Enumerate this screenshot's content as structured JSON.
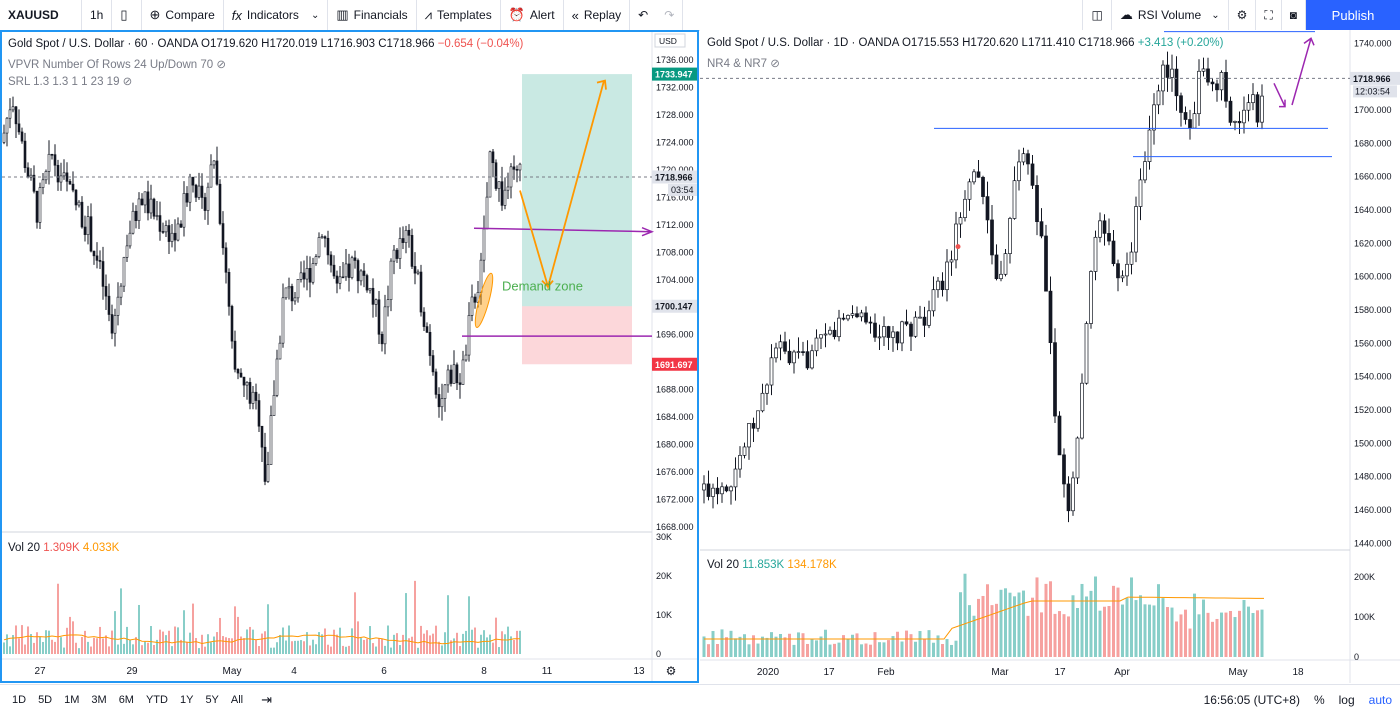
{
  "toolbar": {
    "symbol": "XAUUSD",
    "interval": "1h",
    "compare": "Compare",
    "indicators": "Indicators",
    "financials": "Financials",
    "templates": "Templates",
    "alert": "Alert",
    "replay": "Replay",
    "rsi": "RSI Volume",
    "publish": "Publish"
  },
  "left": {
    "title": "Gold Spot / U.S. Dollar · 60 · OANDA",
    "o": "O1719.620",
    "h": "H1720.019",
    "l": "L1716.903",
    "c": "C1718.966",
    "chg": "−0.654 (−0.04%)",
    "ind1": "VPVR Number Of Rows 24 Up/Down 70",
    "ind2": "SRL 1.3 1.3 1 1 23 19",
    "vol_label": "Vol 20",
    "vol_v1": "1.309K",
    "vol_v2": "4.033K",
    "annotation": "Demand zone",
    "price_ticks": [
      "1736.000",
      "1732.000",
      "1728.000",
      "1724.000",
      "1720.000",
      "1716.000",
      "1712.000",
      "1708.000",
      "1704.000",
      "1700.000",
      "1696.000",
      "1692.000",
      "1688.000",
      "1684.000",
      "1680.000",
      "1676.000",
      "1672.000",
      "1668.000"
    ],
    "vol_ticks": [
      "30K",
      "20K",
      "10K",
      "0"
    ],
    "date_ticks": [
      "27",
      "29",
      "May",
      "4",
      "6",
      "8",
      "11",
      "13"
    ],
    "currency": "USD",
    "label_top": "1733.947",
    "label_last": "1718.966",
    "label_countdown": "03:54",
    "label_mid": "1700.147",
    "label_stop": "1691.697",
    "colors": {
      "up": "#26a69a",
      "down": "#ef5350",
      "target": "#089981",
      "stop": "#f23645"
    }
  },
  "right": {
    "title": "Gold Spot / U.S. Dollar · 1D · OANDA",
    "o": "O1715.553",
    "h": "H1720.620",
    "l": "L1711.410",
    "c": "C1718.966",
    "chg": "+3.413 (+0.20%)",
    "ind1": "NR4 & NR7",
    "vol_label": "Vol 20",
    "vol_v1": "11.853K",
    "vol_v2": "134.178K",
    "price_ticks": [
      "1740.000",
      "1720.000",
      "1700.000",
      "1680.000",
      "1660.000",
      "1640.000",
      "1620.000",
      "1600.000",
      "1580.000",
      "1560.000",
      "1540.000",
      "1520.000",
      "1500.000",
      "1480.000",
      "1460.000",
      "1440.000"
    ],
    "vol_ticks": [
      "200K",
      "100K",
      "0"
    ],
    "date_ticks": [
      "2020",
      "17",
      "Feb",
      "Mar",
      "17",
      "Apr",
      "May",
      "18"
    ],
    "label_last": "1718.966",
    "label_countdown": "12:03:54"
  },
  "bottom": {
    "ranges": [
      "1D",
      "5D",
      "1M",
      "3M",
      "6M",
      "YTD",
      "1Y",
      "5Y",
      "All"
    ],
    "time": "16:56:05 (UTC+8)",
    "pct": "%",
    "log": "log",
    "auto": "auto"
  }
}
